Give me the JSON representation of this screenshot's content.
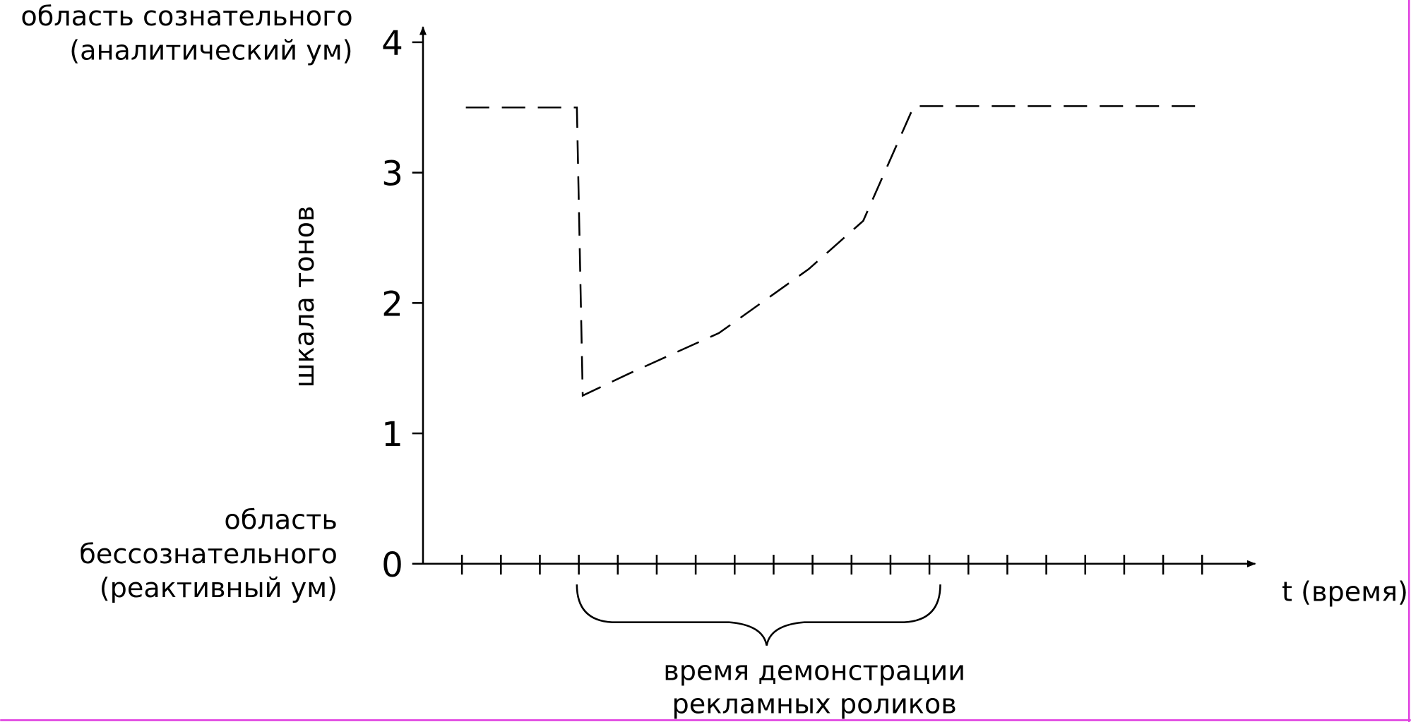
{
  "chart_data": {
    "type": "line",
    "y_label": "шкала тонов",
    "x_label": "t (время)",
    "top_zone_label": [
      "область сознательного",
      "(аналитический ум)"
    ],
    "bottom_zone_label": [
      "область",
      "бессознательного",
      "(реактивный ум)"
    ],
    "brace_label": [
      "время демонстрации",
      "рекламных роликов"
    ],
    "x": [
      1.1,
      3.95,
      4.1,
      5.3,
      7.6,
      9.9,
      11.3,
      12.6,
      20.1
    ],
    "series": [
      {
        "color": "#000000",
        "line_style": "dashed",
        "values": [
          3.5,
          3.5,
          1.29,
          1.46,
          1.77,
          2.26,
          2.63,
          3.51,
          3.51
        ]
      }
    ],
    "xlim": [
      0,
      21.4
    ],
    "xticks": [
      1,
      2,
      3,
      4,
      5,
      6,
      7,
      8,
      9,
      10,
      11,
      12,
      13,
      14,
      15,
      16,
      17,
      18,
      19,
      20
    ],
    "ylim": [
      0,
      4.1
    ],
    "yticks": [
      0,
      1,
      2,
      3,
      4
    ]
  }
}
